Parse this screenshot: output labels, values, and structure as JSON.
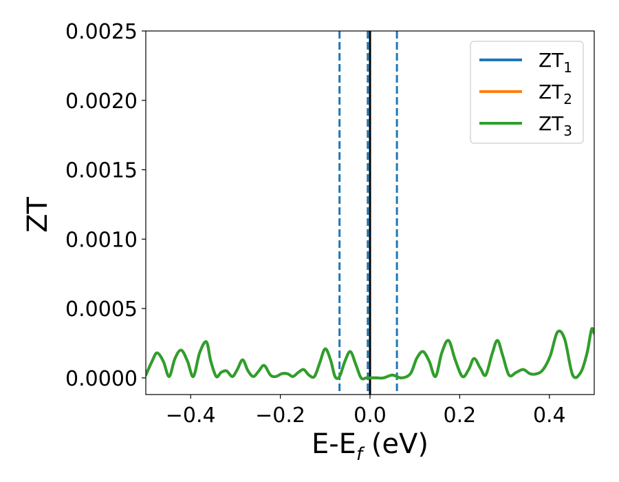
{
  "chart_data": {
    "type": "line",
    "xlabel": "E-E",
    "xlabel_sub": "f",
    "xlabel_unit": " (eV)",
    "ylabel": "ZT",
    "xlim": [
      -0.5,
      0.5
    ],
    "ylim": [
      -0.00012,
      0.0025
    ],
    "xticks": [
      -0.4,
      -0.2,
      0.0,
      0.2,
      0.4
    ],
    "xtick_labels": [
      "−0.4",
      "−0.2",
      "0.0",
      "0.2",
      "0.4"
    ],
    "yticks": [
      0.0,
      0.0005,
      0.001,
      0.0015,
      0.002,
      0.0025
    ],
    "ytick_labels": [
      "0.0000",
      "0.0005",
      "0.0010",
      "0.0015",
      "0.0020",
      "0.0025"
    ],
    "grid": false,
    "legend_position": "top-right",
    "series": [
      {
        "name": "ZT",
        "subscript": "1",
        "color": "#1f77b4",
        "x": [
          -0.5,
          -0.486,
          -0.475,
          -0.461,
          -0.448,
          -0.435,
          -0.421,
          -0.407,
          -0.394,
          -0.38,
          -0.365,
          -0.355,
          -0.343,
          -0.332,
          -0.32,
          -0.307,
          -0.296,
          -0.284,
          -0.272,
          -0.26,
          -0.248,
          -0.236,
          -0.222,
          -0.21,
          -0.197,
          -0.184,
          -0.172,
          -0.16,
          -0.148,
          -0.136,
          -0.124,
          -0.112,
          -0.1,
          -0.088,
          -0.078,
          -0.068,
          -0.056,
          -0.044,
          -0.032,
          -0.02,
          -0.008,
          0.004,
          0.016,
          0.03,
          0.05,
          0.07,
          0.09,
          0.104,
          0.118,
          0.132,
          0.146,
          0.16,
          0.175,
          0.19,
          0.206,
          0.22,
          0.232,
          0.246,
          0.258,
          0.272,
          0.284,
          0.296,
          0.31,
          0.326,
          0.342,
          0.357,
          0.372,
          0.386,
          0.402,
          0.418,
          0.434,
          0.452,
          0.47,
          0.484,
          0.494,
          0.5
        ],
        "y": [
          2e-05,
          0.00012,
          0.00018,
          0.00012,
          1e-05,
          0.00014,
          0.0002,
          0.00012,
          1e-05,
          0.00018,
          0.00026,
          0.00012,
          1e-05,
          4e-05,
          5e-05,
          1e-05,
          6e-05,
          0.00013,
          5e-05,
          1e-05,
          5e-05,
          9e-05,
          2e-05,
          1e-05,
          3e-05,
          3e-05,
          1e-05,
          4e-05,
          6e-05,
          2e-05,
          1e-05,
          0.00011,
          0.00021,
          0.00013,
          1e-05,
          1e-05,
          0.00012,
          0.00019,
          0.0001,
          0.0,
          0.0,
          0.0,
          0.0,
          0.0,
          2e-05,
          0.0,
          3e-05,
          0.00014,
          0.00019,
          0.00012,
          1e-05,
          0.00018,
          0.00027,
          0.00013,
          1e-05,
          6e-05,
          0.00014,
          7e-05,
          2e-05,
          0.00017,
          0.00027,
          0.00016,
          2e-05,
          4e-05,
          6e-05,
          3e-05,
          3e-05,
          6e-05,
          0.00016,
          0.00033,
          0.00028,
          2e-05,
          4e-05,
          0.00018,
          0.00035,
          0.00032
        ]
      },
      {
        "name": "ZT",
        "subscript": "2",
        "color": "#ff7f0e"
      },
      {
        "name": "ZT",
        "subscript": "3",
        "color": "#2ca02c"
      }
    ],
    "vlines": [
      {
        "x": -0.068,
        "style": "dashed",
        "color": "#1f77b4"
      },
      {
        "x": -0.005,
        "style": "dashed",
        "color": "#1f77b4"
      },
      {
        "x": 0.06,
        "style": "dashed",
        "color": "#1f77b4"
      },
      {
        "x": 0.0,
        "style": "solid",
        "color": "#000000"
      }
    ]
  }
}
